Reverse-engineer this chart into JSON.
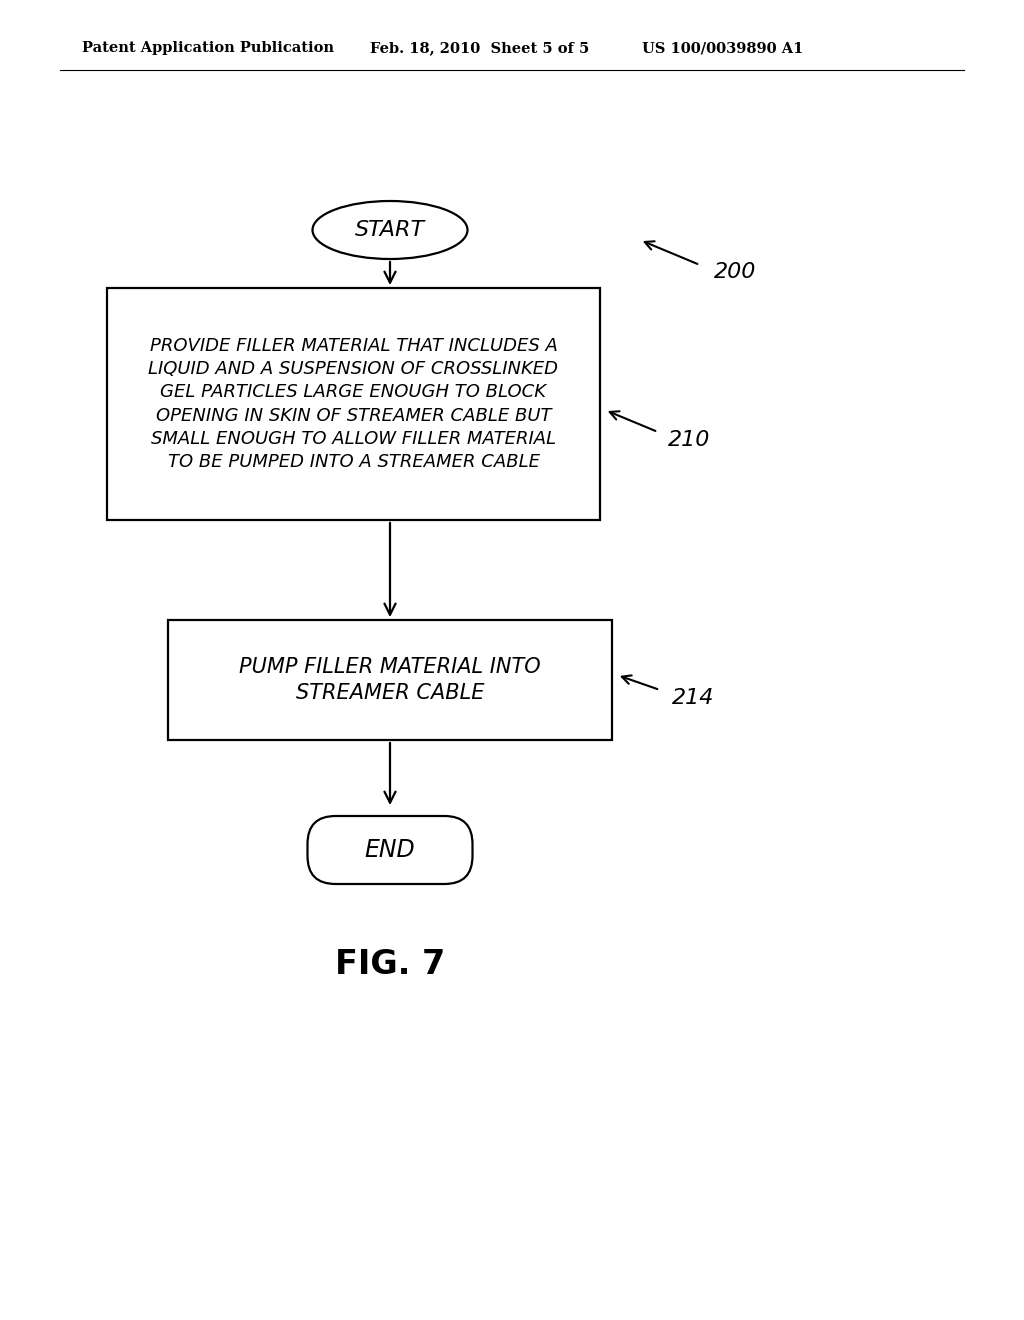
{
  "bg_color": "#ffffff",
  "header_left": "Patent Application Publication",
  "header_mid": "Feb. 18, 2010  Sheet 5 of 5",
  "header_right": "US 100/0039890 A1",
  "fig_label": "FIG. 7",
  "start_label": "START",
  "end_label": "END",
  "box1_text": "PROVIDE FILLER MATERIAL THAT INCLUDES A\nLIQUID AND A SUSPENSION OF CROSSLINKED\nGEL PARTICLES LARGE ENOUGH TO BLOCK\nOPENING IN SKIN OF STREAMER CABLE BUT\nSMALL ENOUGH TO ALLOW FILLER MATERIAL\nTO BE PUMPED INTO A STREAMER CABLE",
  "box2_text": "PUMP FILLER MATERIAL INTO\nSTREAMER CABLE",
  "label_200": "200",
  "label_210": "210",
  "label_214": "214",
  "text_color": "#000000",
  "box_edge_color": "#000000",
  "arrow_color": "#000000"
}
